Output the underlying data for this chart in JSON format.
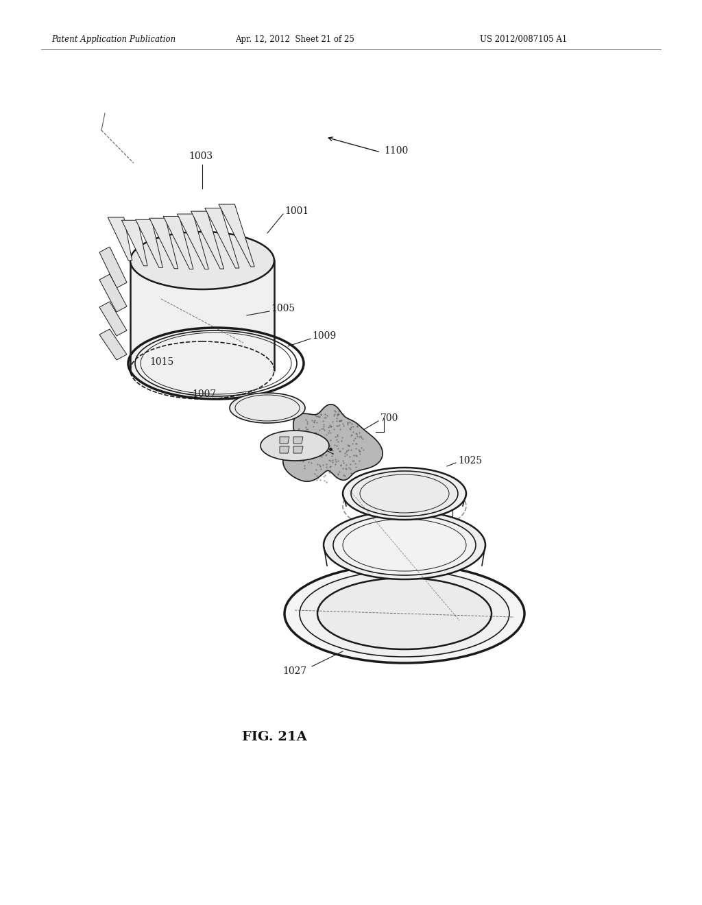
{
  "header_left": "Patent Application Publication",
  "header_mid": "Apr. 12, 2012  Sheet 21 of 25",
  "header_right": "US 2012/0087105 A1",
  "figure_label": "FIG. 21A",
  "bg_color": "#ffffff",
  "line_color": "#1a1a1a",
  "gray_fill": "#e8e8e8",
  "light_fill": "#f4f4f4",
  "stipple_color": "#888888"
}
